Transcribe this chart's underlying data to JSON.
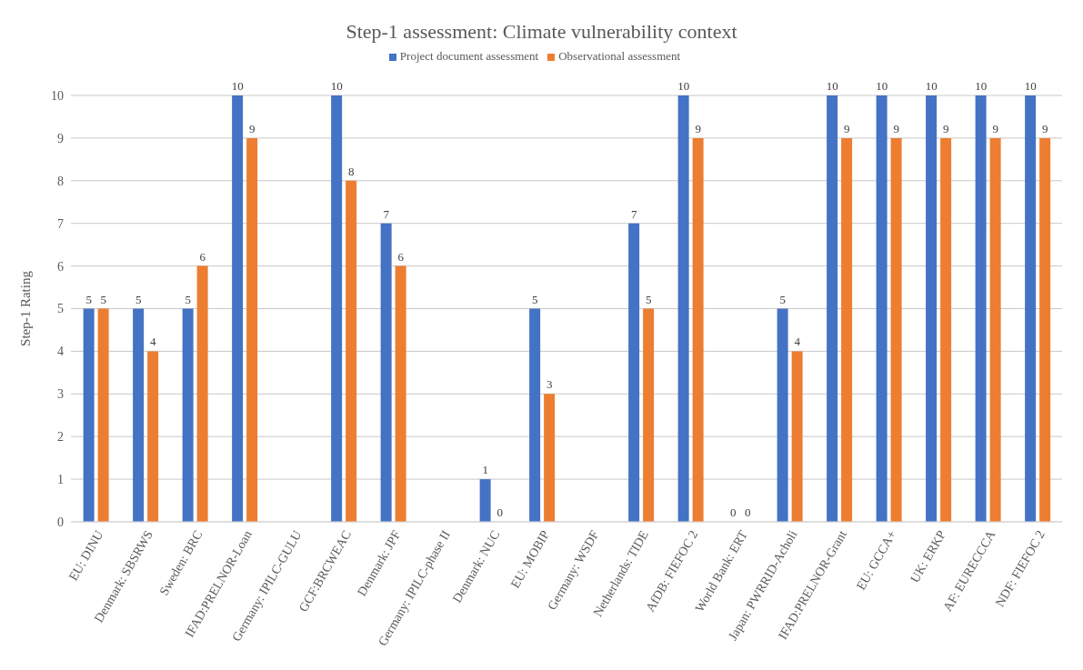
{
  "chart_data": {
    "type": "bar",
    "title": "Step-1 assessment: Climate vulnerability context",
    "ylabel": "Step-1 Rating",
    "categories": [
      "EU: DINU",
      "Denmark: SBSRWS",
      "Sweden: BRC",
      "IFAD:PRELNOR-Loan",
      "Germany: IPILC-GULU",
      "GCF:BRCWEAC",
      "Denmark: JPF",
      "Germany: IPILC-phase II",
      "Denmark: NUC",
      "EU: MOBIP",
      "Germany: WSDF",
      "Netherlands: TIDE",
      "AfDB: FIEFOC 2",
      "World Bank: ERT",
      "Japan: PWRRID-Acholi",
      "IFAD:PRELNOR-Grant",
      "EU: GCCA+",
      "UK: ERKP",
      "AF: EURECCCA",
      "NDF: FIEFOC 2"
    ],
    "series": [
      {
        "name": "Project document assessment",
        "color": "#4472c4",
        "values": [
          5,
          5,
          5,
          10,
          null,
          10,
          7,
          null,
          1,
          5,
          null,
          7,
          10,
          0,
          5,
          10,
          10,
          10,
          10,
          10
        ]
      },
      {
        "name": "Observational assessment",
        "color": "#ed7d31",
        "values": [
          5,
          4,
          6,
          9,
          null,
          8,
          6,
          null,
          0,
          3,
          null,
          5,
          9,
          0,
          4,
          9,
          9,
          9,
          9,
          9
        ]
      }
    ],
    "ylim": [
      0,
      10
    ],
    "yticks": [
      0,
      1,
      2,
      3,
      4,
      5,
      6,
      7,
      8,
      9,
      10
    ],
    "grid": "y",
    "legend": "top",
    "data_labels": true
  }
}
